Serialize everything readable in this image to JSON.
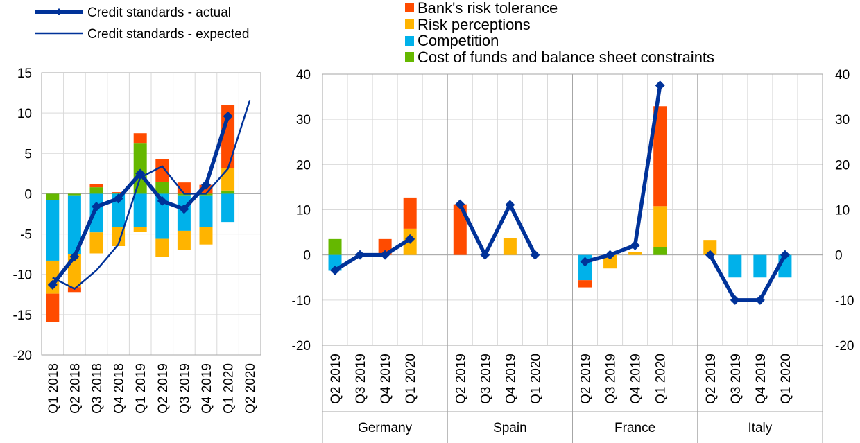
{
  "colors": {
    "risk_tolerance": "#FF4B00",
    "risk_perceptions": "#FFB400",
    "competition": "#00B1EA",
    "cost_of_funds": "#65B800",
    "line": "#003299",
    "grid": "#d9d9d9",
    "axis": "#a6a6a6"
  },
  "legend_left": [
    {
      "key": "actual",
      "label": "Credit standards - actual",
      "style": "thick-line-diamond"
    },
    {
      "key": "expected",
      "label": "Credit standards - expected",
      "style": "thin-line"
    }
  ],
  "legend_right": [
    {
      "key": "risk_tolerance",
      "label": "Bank's risk tolerance"
    },
    {
      "key": "risk_perceptions",
      "label": "Risk perceptions"
    },
    {
      "key": "competition",
      "label": "Competition"
    },
    {
      "key": "cost_of_funds",
      "label": "Cost of funds and balance sheet constraints"
    }
  ],
  "chart_data": [
    {
      "type": "bar",
      "stacked": true,
      "panel": "euro-area",
      "categories": [
        "Q1 2018",
        "Q2 2018",
        "Q3 2018",
        "Q4 2018",
        "Q1 2019",
        "Q2 2019",
        "Q3 2019",
        "Q4 2019",
        "Q1 2020",
        "Q2 2020"
      ],
      "ylim": [
        -20,
        15
      ],
      "yticks": [
        -20,
        -15,
        -10,
        -5,
        0,
        5,
        10,
        15
      ],
      "grid": true,
      "series": [
        {
          "name": "Cost of funds and balance sheet constraints",
          "key": "cost_of_funds",
          "values": [
            -0.8,
            -0.2,
            0.8,
            0.1,
            6.3,
            1.5,
            -0.2,
            -0.2,
            0.4,
            null
          ]
        },
        {
          "name": "Competition",
          "key": "competition",
          "values": [
            -7.5,
            -7.3,
            -4.8,
            -4.1,
            -4.1,
            -5.6,
            -4.4,
            -3.9,
            -3.5,
            null
          ]
        },
        {
          "name": "Risk perceptions",
          "key": "risk_perceptions",
          "values": [
            -4.1,
            -4.1,
            -2.6,
            -2.4,
            -0.6,
            -2.2,
            -2.4,
            -2.2,
            2.8,
            null
          ]
        },
        {
          "name": "Bank's risk tolerance",
          "key": "risk_tolerance",
          "values": [
            -3.5,
            -0.6,
            0.4,
            0.1,
            1.2,
            2.8,
            1.4,
            1.1,
            7.8,
            null
          ]
        }
      ],
      "lines": [
        {
          "name": "Credit standards - actual",
          "key": "actual",
          "values": [
            -11.3,
            -7.8,
            -1.6,
            -0.6,
            2.5,
            -0.9,
            -1.9,
            1.1,
            9.6,
            null
          ]
        },
        {
          "name": "Credit standards - expected",
          "key": "expected",
          "values": [
            -10.4,
            -11.8,
            -9.5,
            -6.3,
            2.0,
            3.4,
            0.0,
            0.0,
            3.1,
            11.6
          ]
        }
      ]
    },
    {
      "type": "bar",
      "stacked": true,
      "panel": "countries",
      "groups": [
        {
          "label": "Germany",
          "categories": [
            "Q2 2019",
            "Q3 2019",
            "Q4 2019",
            "Q1 2020"
          ]
        },
        {
          "label": "Spain",
          "categories": [
            "Q2 2019",
            "Q3 2019",
            "Q4 2019",
            "Q1 2020"
          ]
        },
        {
          "label": "France",
          "categories": [
            "Q2 2019",
            "Q3 2019",
            "Q4 2019",
            "Q1 2020"
          ]
        },
        {
          "label": "Italy",
          "categories": [
            "Q2 2019",
            "Q3 2019",
            "Q4 2019",
            "Q1 2020"
          ]
        }
      ],
      "ylim": [
        -20,
        40
      ],
      "yticks": [
        -20,
        -10,
        0,
        10,
        20,
        30,
        40
      ],
      "grid": true,
      "series": [
        {
          "name": "Cost of funds and balance sheet constraints",
          "key": "cost_of_funds",
          "values": [
            3.5,
            0,
            0,
            0,
            0,
            0,
            0,
            0,
            0,
            0,
            0,
            1.7,
            0,
            0,
            0,
            0
          ]
        },
        {
          "name": "Competition",
          "key": "competition",
          "values": [
            -3.5,
            0,
            0,
            0,
            0,
            0,
            0,
            0,
            -5.6,
            0,
            0,
            0,
            0,
            -5,
            -5,
            -5
          ]
        },
        {
          "name": "Risk perceptions",
          "key": "risk_perceptions",
          "values": [
            0,
            0,
            0,
            5.8,
            0,
            0,
            3.7,
            0,
            0,
            -3,
            0.7,
            9.1,
            3.3,
            0,
            0,
            0
          ]
        },
        {
          "name": "Bank's risk tolerance",
          "key": "risk_tolerance",
          "values": [
            0,
            0,
            3.5,
            6.9,
            11.2,
            0,
            0,
            0,
            -1.6,
            0,
            0,
            22.1,
            0,
            0,
            0,
            0
          ]
        }
      ],
      "lines": [
        {
          "name": "Credit standards - actual",
          "key": "actual",
          "values": [
            -3.4,
            0,
            0,
            3.5,
            11.2,
            0,
            11.1,
            0,
            -1.5,
            0,
            2.1,
            37.5,
            0,
            -10,
            -10,
            0
          ]
        }
      ]
    }
  ]
}
